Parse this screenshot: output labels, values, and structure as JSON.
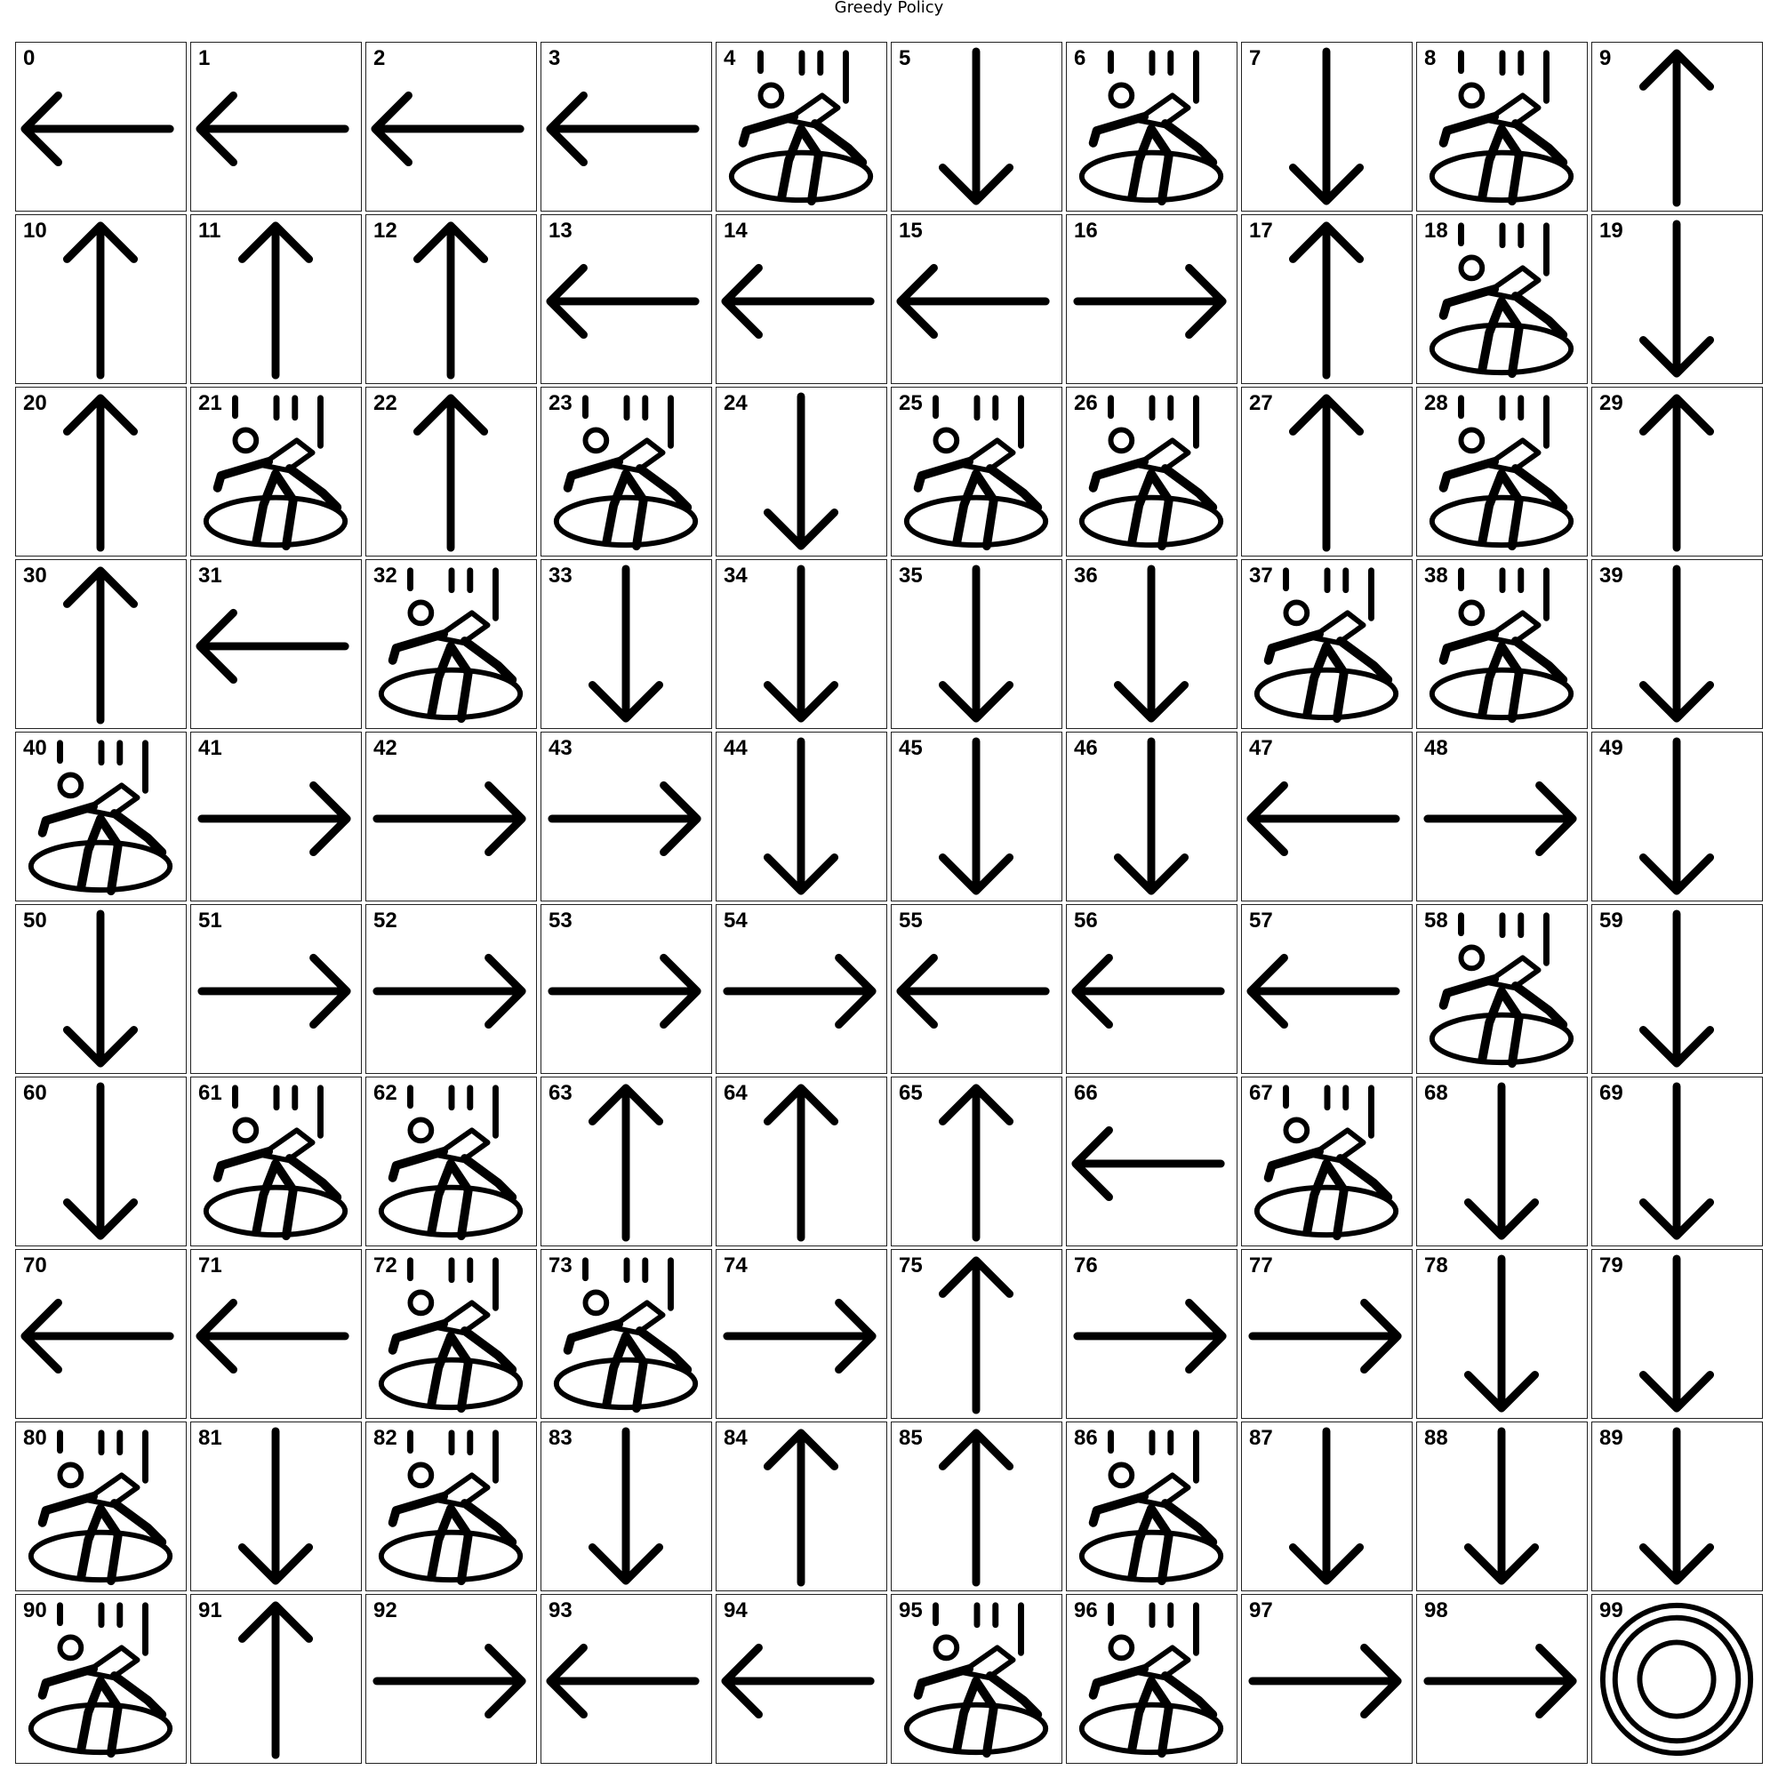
{
  "title": "Greedy Policy",
  "grid": {
    "rows": 10,
    "cols": 10,
    "cells": [
      "left",
      "left",
      "left",
      "left",
      "hole",
      "down",
      "hole",
      "down",
      "hole",
      "up",
      "up",
      "up",
      "up",
      "left",
      "left",
      "left",
      "right",
      "up",
      "hole",
      "down",
      "up",
      "hole",
      "up",
      "hole",
      "down",
      "hole",
      "hole",
      "up",
      "hole",
      "up",
      "up",
      "left",
      "hole",
      "down",
      "down",
      "down",
      "down",
      "hole",
      "hole",
      "down",
      "hole",
      "right",
      "right",
      "right",
      "down",
      "down",
      "down",
      "left",
      "right",
      "down",
      "down",
      "right",
      "right",
      "right",
      "right",
      "left",
      "left",
      "left",
      "hole",
      "down",
      "down",
      "hole",
      "hole",
      "up",
      "up",
      "up",
      "left",
      "hole",
      "down",
      "down",
      "left",
      "left",
      "hole",
      "hole",
      "right",
      "up",
      "right",
      "right",
      "down",
      "down",
      "hole",
      "down",
      "hole",
      "down",
      "up",
      "up",
      "hole",
      "down",
      "down",
      "down",
      "hole",
      "up",
      "right",
      "left",
      "left",
      "hole",
      "hole",
      "right",
      "right",
      "goal"
    ]
  },
  "icons": {
    "left": "arrow-left-icon",
    "right": "arrow-right-icon",
    "up": "arrow-up-icon",
    "down": "arrow-down-icon",
    "hole": "falling-person-icon",
    "goal": "goal-target-icon"
  },
  "colors": {
    "stroke": "#000000",
    "cell_border": "#222222",
    "background": "#ffffff"
  }
}
